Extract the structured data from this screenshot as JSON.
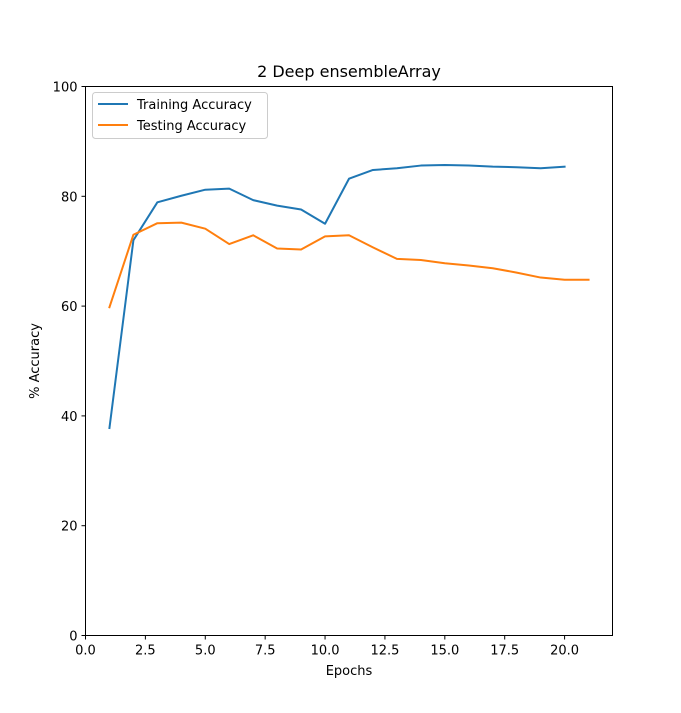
{
  "chart_data": {
    "type": "line",
    "title": "2 Deep ensembleArray",
    "xlabel": "Epochs",
    "ylabel": "% Accuracy",
    "xlim": [
      0,
      22
    ],
    "ylim": [
      0,
      100
    ],
    "x_ticks": [
      0.0,
      2.5,
      5.0,
      7.5,
      10.0,
      12.5,
      15.0,
      17.5,
      20.0
    ],
    "x_tick_labels": [
      "0.0",
      "2.5",
      "5.0",
      "7.5",
      "10.0",
      "12.5",
      "15.0",
      "17.5",
      "20.0"
    ],
    "y_ticks": [
      0,
      20,
      40,
      60,
      80,
      100
    ],
    "y_tick_labels": [
      "0",
      "20",
      "40",
      "60",
      "80",
      "100"
    ],
    "grid": false,
    "legend_position": "upper-left",
    "series": [
      {
        "name": "Training Accuracy",
        "color": "#1f77b4",
        "x": [
          1,
          2,
          3,
          4,
          5,
          6,
          7,
          8,
          9,
          10,
          11,
          12,
          13,
          14,
          15,
          16,
          17,
          18,
          19,
          20
        ],
        "values": [
          37.8,
          72.0,
          78.9,
          80.1,
          81.2,
          81.4,
          79.3,
          78.3,
          77.6,
          75.0,
          83.2,
          84.8,
          85.1,
          85.6,
          85.7,
          85.6,
          85.4,
          85.3,
          85.1,
          85.4
        ]
      },
      {
        "name": "Testing Accuracy",
        "color": "#ff7f0e",
        "x": [
          1,
          2,
          3,
          4,
          5,
          6,
          7,
          8,
          9,
          10,
          11,
          12,
          13,
          14,
          15,
          16,
          17,
          18,
          19,
          20,
          21
        ],
        "values": [
          59.8,
          73.0,
          75.1,
          75.2,
          74.1,
          71.3,
          72.9,
          70.5,
          70.3,
          72.7,
          72.9,
          70.7,
          68.6,
          68.4,
          67.8,
          67.4,
          66.9,
          66.1,
          65.2,
          64.8,
          64.8
        ]
      }
    ]
  }
}
